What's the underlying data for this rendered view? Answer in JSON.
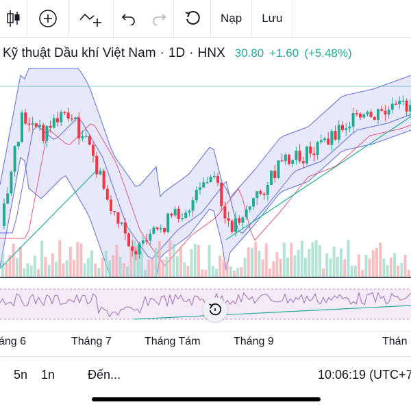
{
  "toolbar": {
    "load_label": "Nạp",
    "save_label": "Lưu",
    "icons": [
      "candlestick-icon",
      "add-circle-icon",
      "indicator-add-icon",
      "undo-icon",
      "redo-icon",
      "refresh-icon"
    ]
  },
  "symbol": {
    "name": "Kỹ thuật Dầu khí Việt Nam",
    "interval": "1D",
    "exchange": "HNX",
    "price": "30.80",
    "change": "+1.60",
    "change_pct": "(+5.48%)",
    "up_color": "#22ab94",
    "down_color": "#f23645"
  },
  "time_axis": {
    "labels": [
      "áng 6",
      "Tháng 7",
      "Tháng Tám",
      "Tháng 9",
      "Thán"
    ]
  },
  "bottom_bar": {
    "range_5n": "5n",
    "range_1n": "1n",
    "goto_label": "Đến...",
    "clock": "10:06:19 (UTC+7"
  }
}
